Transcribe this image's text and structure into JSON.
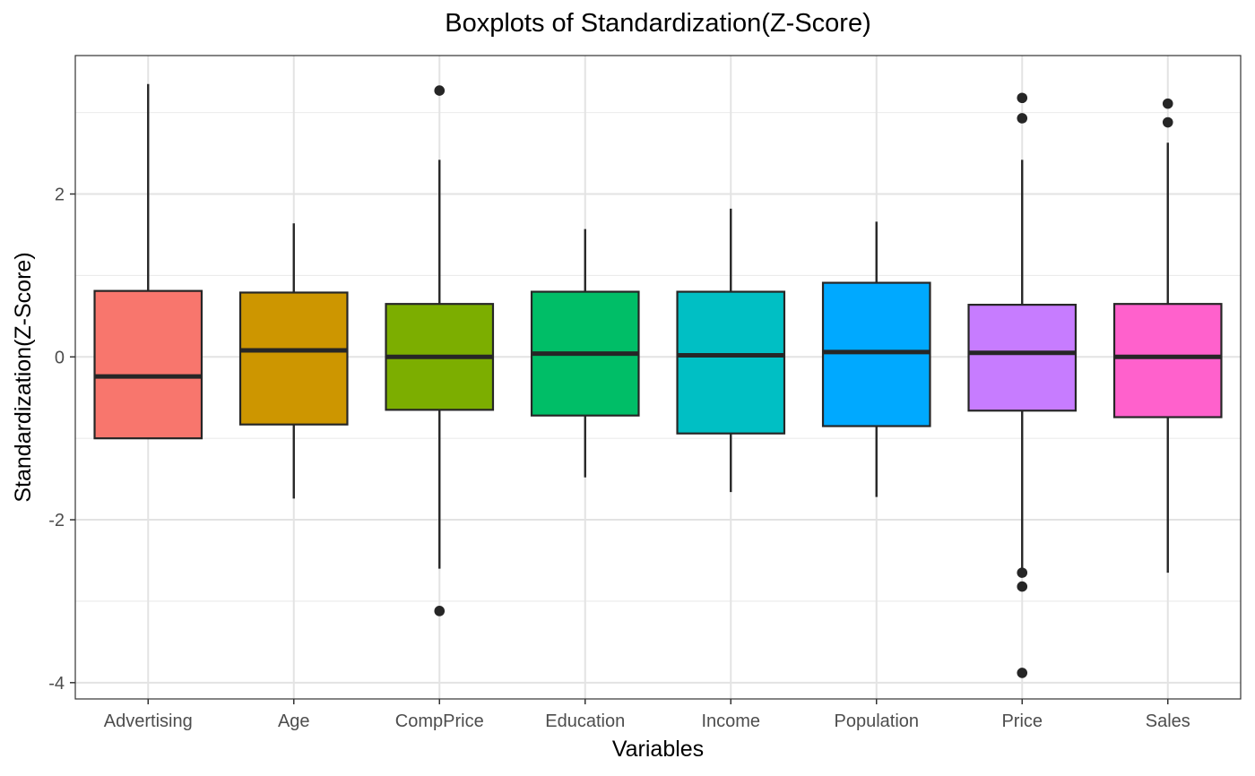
{
  "chart_data": {
    "type": "boxplot",
    "title": "Boxplots of Standardization(Z-Score)",
    "xlabel": "Variables",
    "ylabel": "Standardization(Z-Score)",
    "ylim": [
      -4.2,
      3.7
    ],
    "yticks": [
      -4,
      -2,
      0,
      2
    ],
    "grid": true,
    "legend": "none",
    "categories": [
      "Advertising",
      "Age",
      "CompPrice",
      "Education",
      "Income",
      "Population",
      "Price",
      "Sales"
    ],
    "boxes": [
      {
        "name": "Advertising",
        "color": "#F8766D",
        "whisker_low": -1.0,
        "q1": -1.0,
        "median": -0.24,
        "q3": 0.81,
        "whisker_high": 3.35,
        "outliers": []
      },
      {
        "name": "Age",
        "color": "#CD9600",
        "whisker_low": -1.74,
        "q1": -0.83,
        "median": 0.08,
        "q3": 0.79,
        "whisker_high": 1.64,
        "outliers": []
      },
      {
        "name": "CompPrice",
        "color": "#7CAE00",
        "whisker_low": -2.6,
        "q1": -0.65,
        "median": 0.0,
        "q3": 0.65,
        "whisker_high": 2.42,
        "outliers": [
          3.27,
          -3.12
        ]
      },
      {
        "name": "Education",
        "color": "#00BE67",
        "whisker_low": -1.48,
        "q1": -0.72,
        "median": 0.04,
        "q3": 0.8,
        "whisker_high": 1.57,
        "outliers": []
      },
      {
        "name": "Income",
        "color": "#00BFC4",
        "whisker_low": -1.66,
        "q1": -0.94,
        "median": 0.02,
        "q3": 0.8,
        "whisker_high": 1.82,
        "outliers": []
      },
      {
        "name": "Population",
        "color": "#00A9FF",
        "whisker_low": -1.72,
        "q1": -0.85,
        "median": 0.06,
        "q3": 0.91,
        "whisker_high": 1.66,
        "outliers": []
      },
      {
        "name": "Price",
        "color": "#C77CFF",
        "whisker_low": -2.6,
        "q1": -0.66,
        "median": 0.05,
        "q3": 0.64,
        "whisker_high": 2.42,
        "outliers": [
          3.18,
          2.93,
          -2.65,
          -2.82,
          -3.88
        ]
      },
      {
        "name": "Sales",
        "color": "#FF61CC",
        "whisker_low": -2.65,
        "q1": -0.74,
        "median": 0.0,
        "q3": 0.65,
        "whisker_high": 2.63,
        "outliers": [
          3.11,
          2.88
        ]
      }
    ]
  }
}
